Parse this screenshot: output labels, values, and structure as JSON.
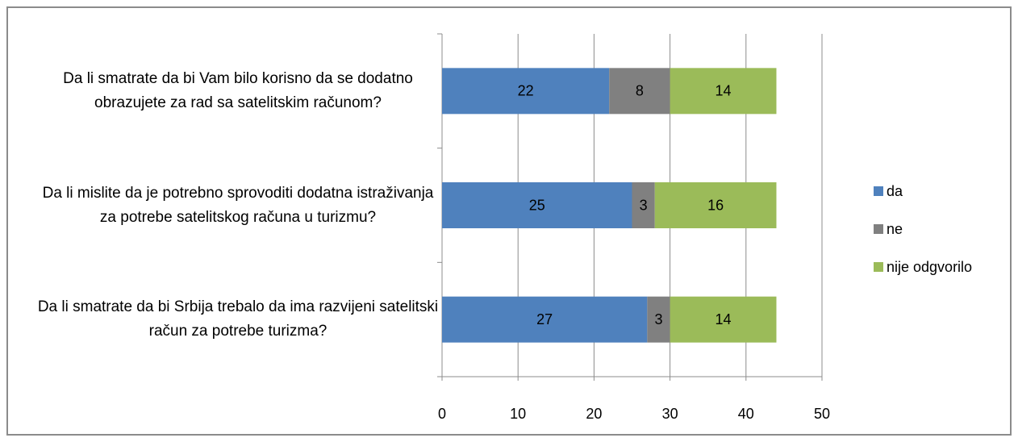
{
  "chart_data": {
    "type": "stacked-barh",
    "categories": [
      "Da li smatrate da bi Vam bilo korisno da se dodatno obrazujete za rad sa satelitskim računom?",
      "Da li mislite da je potrebno sprovoditi dodatna istraživanja za potrebe satelitskog računa u turizmu?",
      "Da li smatrate da bi Srbija trebalo da ima razvijeni satelitski račun za potrebe turizma?"
    ],
    "series": [
      {
        "name": "da",
        "color": "#4f81bd",
        "values": [
          22,
          25,
          27
        ]
      },
      {
        "name": "ne",
        "color": "#808080",
        "values": [
          8,
          3,
          3
        ]
      },
      {
        "name": "nije odgvorilo",
        "color": "#9bbb59",
        "values": [
          14,
          16,
          14
        ]
      }
    ],
    "xlim": [
      0,
      50
    ],
    "xticks": [
      0,
      10,
      20,
      30,
      40,
      50
    ],
    "grid": true,
    "legend": "right"
  }
}
